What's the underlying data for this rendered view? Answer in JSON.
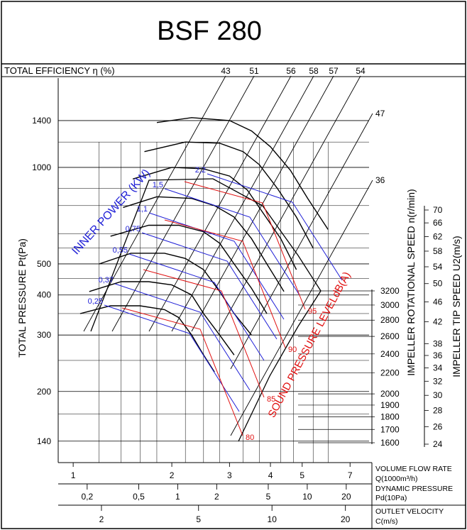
{
  "title": "BSF 280",
  "chart_data": {
    "type": "line",
    "title": "BSF 280",
    "efficiency_header": "TOTAL EFFICIENCY η (%)",
    "efficiency_labels": [
      "43",
      "51",
      "56",
      "58",
      "57",
      "54",
      "47",
      "36"
    ],
    "y_left_label": "TOTAL PRESSURE Pt(Pa)",
    "y_left_ticks": [
      "1400",
      "1000",
      "500",
      "400",
      "300",
      "200",
      "140"
    ],
    "y_left_range": [
      120,
      1900
    ],
    "y_left_scale": "log",
    "power_label": "INNER POWER (KW)",
    "power_values": [
      "0,25",
      "0,37",
      "0,55",
      "0,75",
      "1,1",
      "1,5",
      "2,2"
    ],
    "sound_label": "SOUND PRESSURE LEVELdB(A)",
    "sound_values": [
      "80",
      "85",
      "90",
      "95"
    ],
    "speed_label": "IMPELLER ROTATIONAL SPEED n(r/min)",
    "speed_ticks": [
      "3200",
      "3000",
      "2800",
      "2600",
      "2400",
      "2200",
      "2000",
      "1900",
      "1800",
      "1700",
      "1600"
    ],
    "tip_label": "IMPELLER TIP SPEED U2(m/s)",
    "tip_ticks": [
      "70",
      "66",
      "62",
      "58",
      "54",
      "50",
      "46",
      "42",
      "38",
      "36",
      "34",
      "32",
      "30",
      "28",
      "26",
      "24"
    ],
    "flow_label": "VOLUME FLOW RATE",
    "flow_unit": "Q(1000m³/h)",
    "flow_ticks": [
      "1",
      "2",
      "3",
      "4",
      "5",
      "7"
    ],
    "flow_range": [
      0.9,
      8
    ],
    "flow_scale": "log",
    "dyn_label": "DYNAMIC PRESSURE",
    "dyn_unit": "Pd(10Pa)",
    "dyn_ticks": [
      "0,2",
      "0,5",
      "1",
      "2",
      "5",
      "10",
      "20"
    ],
    "vel_label": "OUTLET VELOCITY",
    "vel_unit": "C(m/s)",
    "vel_ticks": [
      "2",
      "5",
      "10",
      "20"
    ],
    "grid": true,
    "colors": {
      "frame": "#000000",
      "power": "#1f1fd6",
      "sound": "#e01010"
    },
    "series": [
      {
        "x": [
          1.05,
          1.3,
          1.6,
          1.9,
          2.1,
          2.3,
          2.5,
          2.7
        ],
        "y": [
          350,
          370,
          370,
          360,
          340,
          300,
          260,
          230
        ]
      },
      {
        "x": [
          1.12,
          1.4,
          1.7,
          2.0,
          2.3,
          2.5,
          2.8,
          3.1
        ],
        "y": [
          410,
          440,
          440,
          430,
          400,
          350,
          300,
          260
        ]
      },
      {
        "x": [
          1.2,
          1.5,
          1.9,
          2.2,
          2.5,
          2.8,
          3.1,
          3.5
        ],
        "y": [
          500,
          540,
          540,
          520,
          480,
          410,
          350,
          300
        ]
      },
      {
        "x": [
          1.3,
          1.7,
          2.1,
          2.5,
          2.8,
          3.1,
          3.5,
          3.9
        ],
        "y": [
          610,
          660,
          660,
          630,
          580,
          500,
          420,
          350
        ]
      },
      {
        "x": [
          1.42,
          1.8,
          2.3,
          2.7,
          3.1,
          3.5,
          3.9,
          4.4
        ],
        "y": [
          750,
          810,
          800,
          760,
          700,
          600,
          500,
          410
        ]
      },
      {
        "x": [
          1.52,
          2.0,
          2.5,
          3.0,
          3.4,
          3.8,
          4.3,
          4.8
        ],
        "y": [
          920,
          1000,
          990,
          940,
          850,
          720,
          600,
          480
        ]
      },
      {
        "x": [
          1.65,
          2.2,
          2.8,
          3.3,
          3.7,
          4.2,
          4.8,
          5.4
        ],
        "y": [
          1120,
          1200,
          1190,
          1120,
          1020,
          860,
          700,
          560
        ]
      },
      {
        "x": [
          1.8,
          2.3,
          3.0,
          3.5,
          4.0,
          4.6,
          5.2,
          6.0
        ],
        "y": [
          1380,
          1430,
          1400,
          1300,
          1160,
          980,
          800,
          640
        ]
      }
    ]
  }
}
